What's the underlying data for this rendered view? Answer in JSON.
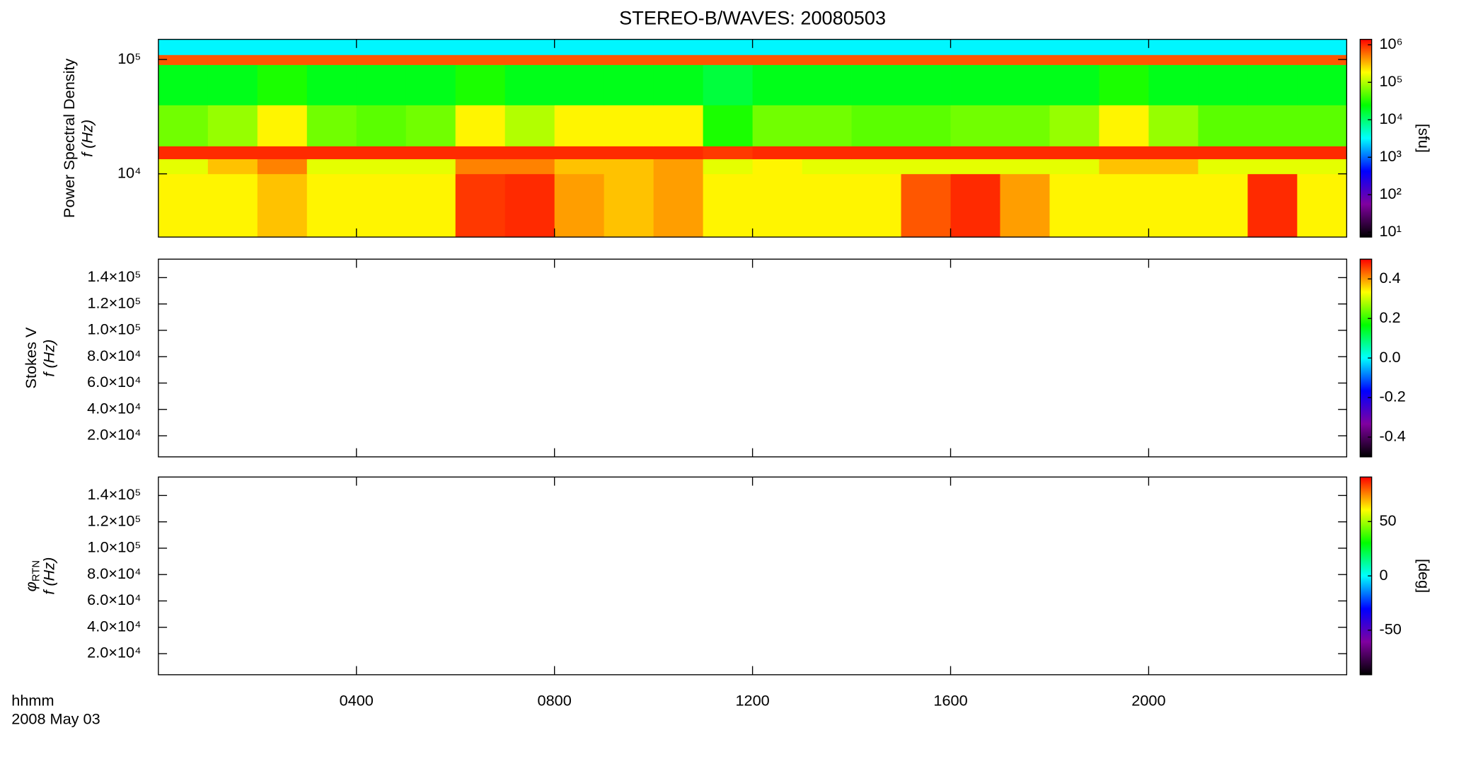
{
  "chart_data": [
    {
      "type": "heatmap",
      "title": "STEREO-B/WAVES: 20080503",
      "ylabel": "Power Spectral Density",
      "ylabel2": "f (Hz)",
      "ylog": true,
      "ylim": [
        2800,
        150000
      ],
      "yticks": [
        {
          "value": 10000,
          "label": "10⁴"
        },
        {
          "value": 100000,
          "label": "10⁵"
        }
      ],
      "colormap": [
        "#000000",
        "#8000a0",
        "#0000ff",
        "#00ffff",
        "#00ff00",
        "#ffff00",
        "#ff0000"
      ],
      "x_bins": [
        0,
        1,
        2,
        3,
        4,
        5,
        6,
        7,
        8,
        9,
        10,
        11,
        12,
        13,
        14,
        15,
        16,
        17,
        18,
        19,
        20,
        21,
        22,
        23,
        24
      ],
      "y_bins": [
        2800,
        10000,
        13500,
        17500,
        40000,
        90000,
        110000,
        150000
      ],
      "z": [
        [
          200000,
          200000,
          300000,
          200000,
          200000,
          200000,
          900000,
          1000000,
          400000,
          300000,
          400000,
          200000,
          200000,
          200000,
          200000,
          700000,
          1000000,
          400000,
          200000,
          200000,
          200000,
          200000,
          1000000,
          200000
        ],
        [
          150000,
          300000,
          500000,
          150000,
          150000,
          150000,
          500000,
          500000,
          300000,
          300000,
          400000,
          150000,
          200000,
          150000,
          150000,
          150000,
          150000,
          150000,
          150000,
          300000,
          300000,
          150000,
          150000,
          150000
        ],
        [
          1000000,
          1000000,
          1000000,
          1000000,
          1000000,
          1000000,
          1000000,
          1000000,
          1000000,
          1000000,
          1000000,
          900000,
          1000000,
          1000000,
          1000000,
          1000000,
          1000000,
          1000000,
          1000000,
          1000000,
          1000000,
          1000000,
          1000000,
          1000000
        ],
        [
          60000,
          80000,
          200000,
          60000,
          50000,
          60000,
          200000,
          100000,
          200000,
          200000,
          200000,
          30000,
          60000,
          60000,
          50000,
          50000,
          60000,
          60000,
          80000,
          200000,
          80000,
          50000,
          50000,
          50000
        ],
        [
          20000,
          20000,
          30000,
          20000,
          20000,
          20000,
          30000,
          20000,
          20000,
          20000,
          20000,
          15000,
          20000,
          20000,
          20000,
          20000,
          20000,
          20000,
          20000,
          30000,
          20000,
          20000,
          20000,
          20000
        ],
        [
          700000,
          700000,
          700000,
          700000,
          700000,
          700000,
          700000,
          700000,
          700000,
          700000,
          700000,
          700000,
          700000,
          700000,
          700000,
          700000,
          700000,
          700000,
          700000,
          700000,
          700000,
          700000,
          700000,
          700000
        ],
        [
          3000,
          3000,
          3000,
          3000,
          3000,
          3000,
          3000,
          3000,
          3000,
          3000,
          3000,
          3000,
          3000,
          3000,
          3000,
          3000,
          3000,
          3000,
          3000,
          3000,
          3000,
          3000,
          3000,
          3000
        ]
      ],
      "colorbar": {
        "log": true,
        "lim": [
          7.4,
          1400000
        ],
        "ticks": [
          {
            "value": 10,
            "label": "10¹"
          },
          {
            "value": 100,
            "label": "10²"
          },
          {
            "value": 1000,
            "label": "10³"
          },
          {
            "value": 10000,
            "label": "10⁴"
          },
          {
            "value": 100000,
            "label": "10⁵"
          },
          {
            "value": 1000000,
            "label": "10⁶"
          }
        ],
        "label": "[sfu]"
      }
    },
    {
      "type": "heatmap",
      "ylabel": "Stokes V",
      "ylabel2": "f (Hz)",
      "ylim": [
        4000,
        154000
      ],
      "yticks": [
        {
          "value": 20000,
          "label": "2.0×10⁴"
        },
        {
          "value": 40000,
          "label": "4.0×10⁴"
        },
        {
          "value": 60000,
          "label": "6.0×10⁴"
        },
        {
          "value": 80000,
          "label": "8.0×10⁴"
        },
        {
          "value": 100000,
          "label": "1.0×10⁵"
        },
        {
          "value": 120000,
          "label": "1.2×10⁵"
        },
        {
          "value": 140000,
          "label": "1.4×10⁵"
        }
      ],
      "colorbar": {
        "lim": [
          -0.5,
          0.5
        ],
        "ticks": [
          -0.4,
          -0.2,
          {
            "value": 0,
            "label": "0.0"
          },
          0.2,
          0.4
        ]
      }
    },
    {
      "type": "heatmap",
      "ylabel": "φ",
      "ylabel_sub": "RTN",
      "ylabel2": "f (Hz)",
      "ylim": [
        4000,
        154000
      ],
      "yticks": [
        {
          "value": 20000,
          "label": "2.0×10⁴"
        },
        {
          "value": 40000,
          "label": "4.0×10⁴"
        },
        {
          "value": 60000,
          "label": "6.0×10⁴"
        },
        {
          "value": 80000,
          "label": "8.0×10⁴"
        },
        {
          "value": 100000,
          "label": "1.0×10⁵"
        },
        {
          "value": 120000,
          "label": "1.2×10⁵"
        },
        {
          "value": 140000,
          "label": "1.4×10⁵"
        }
      ],
      "colorbar": {
        "lim": [
          -91,
          91
        ],
        "ticks": [
          -50,
          0,
          50
        ],
        "label": "[deg]"
      },
      "xlim": [
        0,
        24
      ],
      "xticks": [
        {
          "value": 4,
          "label": "0400"
        },
        {
          "value": 8,
          "label": "0800"
        },
        {
          "value": 12,
          "label": "1200"
        },
        {
          "value": 16,
          "label": "1600"
        },
        {
          "value": 20,
          "label": "2000"
        }
      ],
      "xlabel": "hhmm",
      "date": "2008 May 03"
    }
  ]
}
